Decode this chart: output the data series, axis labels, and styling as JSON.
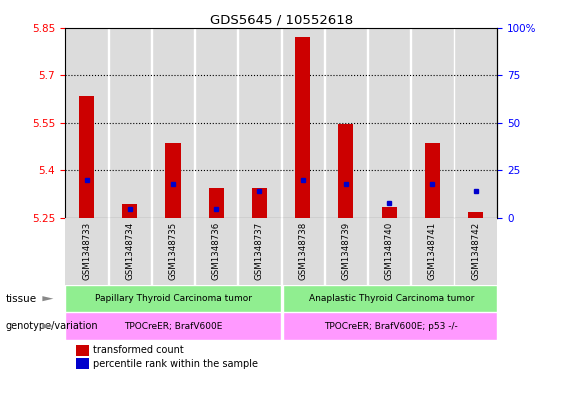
{
  "title": "GDS5645 / 10552618",
  "samples": [
    "GSM1348733",
    "GSM1348734",
    "GSM1348735",
    "GSM1348736",
    "GSM1348737",
    "GSM1348738",
    "GSM1348739",
    "GSM1348740",
    "GSM1348741",
    "GSM1348742"
  ],
  "red_values": [
    5.635,
    5.295,
    5.485,
    5.345,
    5.345,
    5.82,
    5.545,
    5.285,
    5.485,
    5.27
  ],
  "blue_values": [
    20,
    5,
    18,
    5,
    14,
    20,
    18,
    8,
    18,
    14
  ],
  "ymin": 5.25,
  "ymax": 5.85,
  "yticks": [
    5.25,
    5.4,
    5.55,
    5.7,
    5.85
  ],
  "y2min": 0,
  "y2max": 100,
  "y2ticks": [
    0,
    25,
    50,
    75,
    100
  ],
  "group1_label": "Papillary Thyroid Carcinoma tumor",
  "group2_label": "Anaplastic Thyroid Carcinoma tumor",
  "genotype1_label": "TPOCreER; BrafV600E",
  "genotype2_label": "TPOCreER; BrafV600E; p53 -/-",
  "tissue_label": "tissue",
  "genotype_label": "genotype/variation",
  "legend_red": "transformed count",
  "legend_blue": "percentile rank within the sample",
  "group1_color": "#90EE90",
  "group2_color": "#90EE90",
  "genotype1_color": "#FF99FF",
  "genotype2_color": "#FF99FF",
  "bar_color": "#CC0000",
  "marker_color": "#0000CC",
  "bg_color": "#DCDCDC",
  "sep_color": "#FFFFFF",
  "bar_width": 0.35
}
